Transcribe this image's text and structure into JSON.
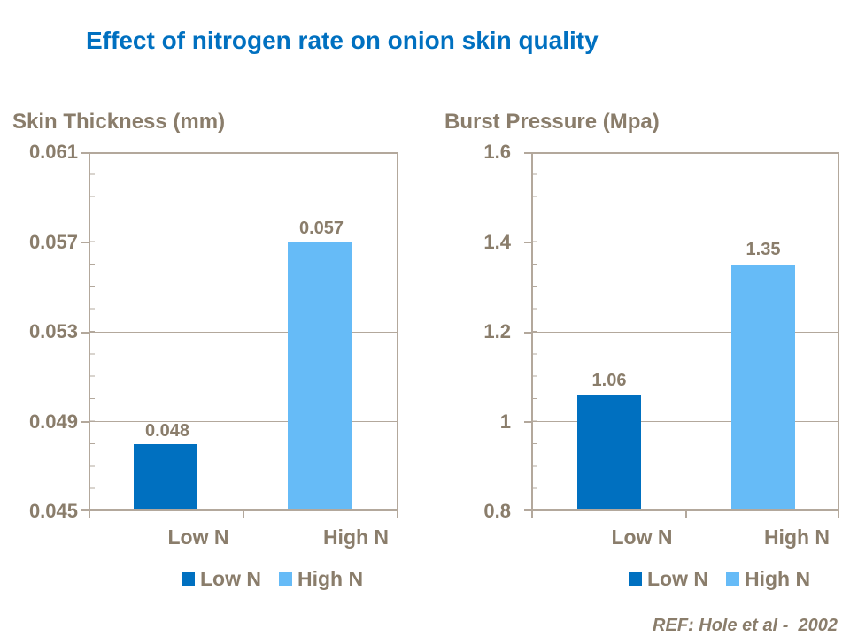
{
  "page": {
    "title": "Effect of nitrogen rate on onion skin quality",
    "reference": "REF: Hole et al -  2002"
  },
  "colors": {
    "title_blue": "#0070C0",
    "low_n_bar": "#0070C0",
    "high_n_bar": "#66BBF7",
    "text_brown": "#8A7D6B",
    "axis_line": "#B3A89C"
  },
  "chart_data": [
    {
      "type": "bar",
      "title": "Skin Thickness (mm)",
      "categories": [
        "Low N",
        "High N"
      ],
      "values": [
        0.048,
        0.057
      ],
      "data_labels": [
        "0.048",
        "0.057"
      ],
      "ylim": [
        0.045,
        0.061
      ],
      "yticks": [
        "0.061",
        "0.057",
        "0.053",
        "0.049",
        "0.045"
      ],
      "minor_tick_step": 0.001,
      "grid": true,
      "legend_position": "bottom",
      "legend": [
        "Low N",
        "High N"
      ],
      "bar_colors": [
        "#0070C0",
        "#66BBF7"
      ]
    },
    {
      "type": "bar",
      "title": "Burst Pressure (Mpa)",
      "categories": [
        "Low N",
        "High N"
      ],
      "values": [
        1.06,
        1.35
      ],
      "data_labels": [
        "1.06",
        "1.35"
      ],
      "ylim": [
        0.8,
        1.6
      ],
      "yticks": [
        "1.6",
        "1.4",
        "1.2",
        "1",
        "0.8"
      ],
      "minor_tick_step": 0.05,
      "grid": true,
      "legend_position": "bottom",
      "legend": [
        "Low N",
        "High N"
      ],
      "bar_colors": [
        "#0070C0",
        "#66BBF7"
      ]
    }
  ]
}
